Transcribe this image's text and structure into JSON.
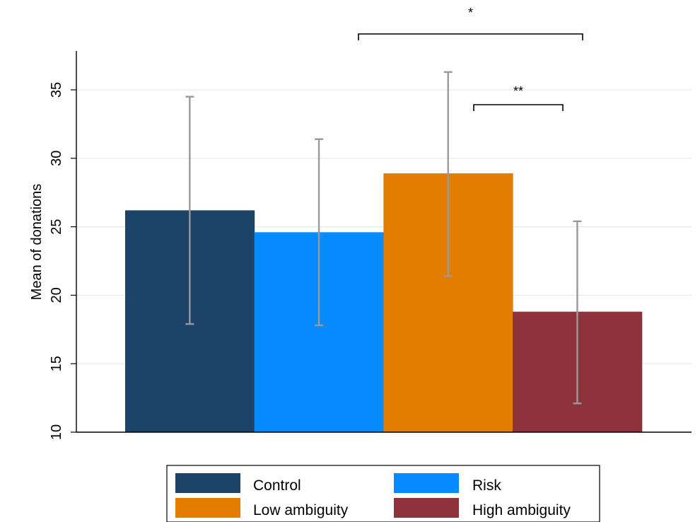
{
  "chart_data": {
    "type": "bar",
    "title": "",
    "xlabel": "",
    "ylabel": "Mean of donations",
    "ylim": [
      10,
      37.5
    ],
    "yticks": [
      "10",
      "15",
      "20",
      "25",
      "30",
      "35"
    ],
    "grid": true,
    "legend_position": "bottom",
    "series": [
      {
        "name": "Control",
        "value": 26.2,
        "ci_low": 17.9,
        "ci_high": 34.5,
        "color": "#1b4468"
      },
      {
        "name": "Risk",
        "value": 24.6,
        "ci_low": 17.8,
        "ci_high": 31.4,
        "color": "#068bff"
      },
      {
        "name": "Low ambiguity",
        "value": 28.9,
        "ci_low": 21.4,
        "ci_high": 36.3,
        "color": "#e47c00"
      },
      {
        "name": "High ambiguity",
        "value": 18.8,
        "ci_low": 12.1,
        "ci_high": 25.4,
        "color": "#8e333c"
      }
    ],
    "significance": [
      {
        "label": "*",
        "from": "Risk",
        "to": "High ambiguity"
      },
      {
        "label": "**",
        "from": "Low ambiguity",
        "to": "High ambiguity"
      }
    ]
  }
}
